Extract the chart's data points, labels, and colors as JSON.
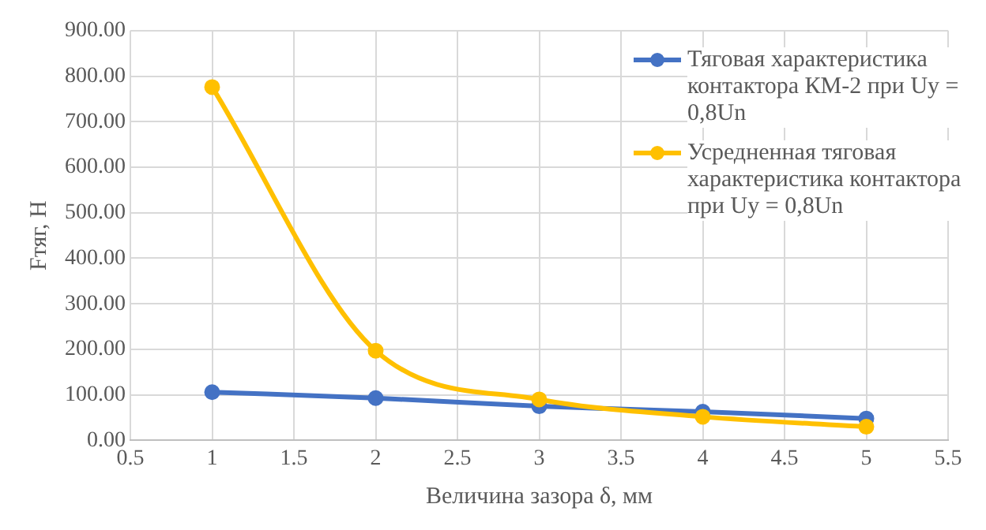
{
  "chart_data": {
    "type": "line",
    "xlabel": "Величина зазора δ, мм",
    "ylabel": "Fтяг, Н",
    "xlim": [
      0.5,
      5.5
    ],
    "xticks": [
      0.5,
      1,
      1.5,
      2,
      2.5,
      3,
      3.5,
      4,
      4.5,
      5,
      5.5
    ],
    "ylim": [
      0,
      900
    ],
    "yticks": [
      {
        "value": 0,
        "label": "0.00"
      },
      {
        "value": 100,
        "label": "100.00"
      },
      {
        "value": 200,
        "label": "200.00"
      },
      {
        "value": 300,
        "label": "300.00"
      },
      {
        "value": 400,
        "label": "400.00"
      },
      {
        "value": 500,
        "label": "500.00"
      },
      {
        "value": 600,
        "label": "600.00"
      },
      {
        "value": 700,
        "label": "700.00"
      },
      {
        "value": 800,
        "label": "800.00"
      },
      {
        "value": 900,
        "label": "900.00"
      }
    ],
    "x": [
      1,
      2,
      3,
      4,
      5
    ],
    "series": [
      {
        "name": "Тяговая характеристика контактора КМ-2 при Uy = 0,8Un",
        "color": "#4472c4",
        "values": [
          106,
          93,
          75,
          63,
          48
        ]
      },
      {
        "name": "Усредненная тяговая характеристика контактора при Uy = 0,8Un",
        "color": "#ffc000",
        "values": [
          776,
          197,
          90,
          52,
          30
        ]
      }
    ],
    "grid": true,
    "legend": "top right",
    "marker": "circle",
    "line_style": "solid"
  }
}
